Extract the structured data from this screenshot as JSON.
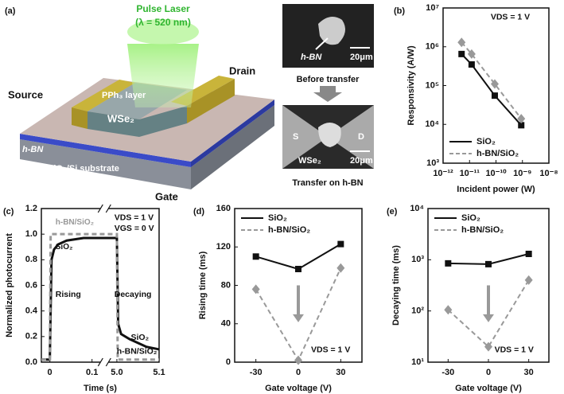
{
  "panel_a": {
    "label": "(a)",
    "laser": "Pulse Laser",
    "wavelength": "(λ = 520 nm)",
    "source": "Source",
    "drain": "Drain",
    "layer": "PPh₃ layer",
    "channel": "WSe₂",
    "hbn": "h-BN",
    "substrate": "SiO₂/Si substrate",
    "gate": "Gate",
    "images": [
      {
        "marker": "h-BN",
        "scale": "20μm",
        "caption": "Before transfer"
      },
      {
        "source": "S",
        "drain": "D",
        "marker": "WSe₂",
        "scale": "20μm",
        "caption": "Transfer on h-BN"
      }
    ]
  },
  "chart_data": [
    {
      "type": "line",
      "panel_label": "(b)",
      "xlabel": "Incident power (W)",
      "ylabel": "Responsivity (A/W)",
      "xlog": true,
      "ylog": true,
      "x": [
        5e-12,
        1.2e-11,
        9e-11,
        9e-10
      ],
      "xlim": [
        1e-12,
        1e-08
      ],
      "xticks": [
        {
          "value": 1e-12,
          "label": "10⁻¹²"
        },
        {
          "value": 1e-11,
          "label": "10⁻¹¹"
        },
        {
          "value": 1e-10,
          "label": "10⁻¹⁰"
        },
        {
          "value": 1e-09,
          "label": "10⁻⁹"
        },
        {
          "value": 1e-08,
          "label": "10⁻⁸"
        }
      ],
      "ylim": [
        1000,
        10000000
      ],
      "yticks": [
        {
          "value": 1000,
          "label": "10³"
        },
        {
          "value": 10000,
          "label": "10⁴"
        },
        {
          "value": 100000,
          "label": "10⁵"
        },
        {
          "value": 1000000,
          "label": "10⁶"
        },
        {
          "value": 10000000,
          "label": "10⁷"
        }
      ],
      "legend": "lower left",
      "annotations": [
        "VDS = 1 V"
      ],
      "series": [
        {
          "name": "SiO₂",
          "color": "#111111",
          "dash": false,
          "marker": "square",
          "values": [
            650000,
            350000,
            55000,
            9500
          ]
        },
        {
          "name": "h-BN/SiO₂",
          "color": "#999999",
          "dash": true,
          "marker": "diamond",
          "values": [
            1300000,
            650000,
            110000,
            14000
          ]
        }
      ]
    },
    {
      "type": "line",
      "panel_label": "(c)",
      "xlabel": "Time (s)",
      "ylabel": "Normalized photocurrent",
      "xlim": [
        -0.02,
        5.1
      ],
      "axis_break": [
        0.12,
        4.98
      ],
      "xticks": [
        0,
        0.1,
        {
          "value": 5,
          "label": "5.0"
        },
        5.1
      ],
      "ylim": [
        0,
        1.2
      ],
      "yticks": [
        {
          "value": 0,
          "label": "0.0"
        },
        0.2,
        0.4,
        0.6,
        0.8,
        {
          "value": 1,
          "label": "1.0"
        },
        1.2
      ],
      "annotations": [
        "VDS = 1 V",
        "VGS = 0 V",
        "Rising",
        "Decaying",
        "SiO₂",
        "h-BN/SiO₂"
      ],
      "series": [
        {
          "name": "SiO₂",
          "color": "#111111",
          "dash": false,
          "width": 3,
          "x": [
            -0.02,
            0,
            0.004,
            0.01,
            0.02,
            0.04,
            0.06,
            0.08,
            0.1,
            0.12,
            4.98,
            5.0,
            5.003,
            5.01,
            5.03,
            5.05,
            5.07,
            5.1
          ],
          "values": [
            0.02,
            0.02,
            0.8,
            0.88,
            0.92,
            0.95,
            0.96,
            0.97,
            0.97,
            0.97,
            0.97,
            0.97,
            0.3,
            0.22,
            0.18,
            0.15,
            0.12,
            0.1
          ]
        },
        {
          "name": "h-BN/SiO₂",
          "color": "#999999",
          "dash": true,
          "width": 3,
          "x": [
            -0.02,
            0,
            0.002,
            0.03,
            0.06,
            0.09,
            0.12,
            4.98,
            5.0,
            5.002,
            5.05,
            5.1
          ],
          "values": [
            0.02,
            0.02,
            1.0,
            1.0,
            1.0,
            1.0,
            1.0,
            1.0,
            1.0,
            0.02,
            0.02,
            0.02
          ]
        }
      ]
    },
    {
      "type": "line",
      "panel_label": "(d)",
      "xlabel": "Gate voltage (V)",
      "ylabel": "Rising time (ms)",
      "x": [
        -30,
        0,
        30
      ],
      "xlim": [
        -45,
        45
      ],
      "xticks": [
        -30,
        0,
        30
      ],
      "ylim": [
        0,
        160
      ],
      "yticks": [
        0,
        40,
        80,
        120,
        160
      ],
      "legend": "upper left",
      "annotations": [
        "VDS = 1 V"
      ],
      "series": [
        {
          "name": "SiO₂",
          "color": "#111111",
          "dash": false,
          "marker": "square",
          "values": [
            110,
            97,
            123
          ]
        },
        {
          "name": "h-BN/SiO₂",
          "color": "#999999",
          "dash": true,
          "marker": "diamond",
          "values": [
            76,
            2,
            98
          ]
        }
      ]
    },
    {
      "type": "line",
      "panel_label": "(e)",
      "xlabel": "Gate voltage (V)",
      "ylabel": "Decaying time (ms)",
      "ylog": true,
      "x": [
        -30,
        0,
        30
      ],
      "xlim": [
        -45,
        45
      ],
      "xticks": [
        -30,
        0,
        30
      ],
      "ylim": [
        10,
        10000
      ],
      "yticks": [
        {
          "value": 10,
          "label": "10¹"
        },
        {
          "value": 100,
          "label": "10²"
        },
        {
          "value": 1000,
          "label": "10³"
        },
        {
          "value": 10000,
          "label": "10⁴"
        }
      ],
      "legend": "upper left",
      "annotations": [
        "VDS = 1 V"
      ],
      "series": [
        {
          "name": "SiO₂",
          "color": "#111111",
          "dash": false,
          "marker": "square",
          "values": [
            850,
            820,
            1300
          ]
        },
        {
          "name": "h-BN/SiO₂",
          "color": "#999999",
          "dash": true,
          "marker": "diamond",
          "values": [
            105,
            20,
            400
          ]
        }
      ]
    }
  ]
}
